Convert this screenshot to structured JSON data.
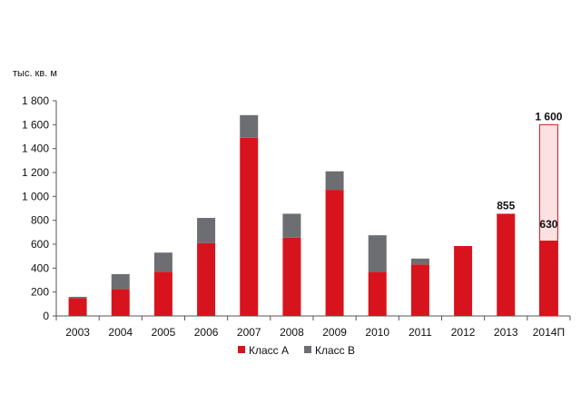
{
  "chart_data": {
    "type": "bar",
    "stacked": true,
    "unit_label": "тыс. кв. м",
    "categories": [
      "2003",
      "2004",
      "2005",
      "2006",
      "2007",
      "2008",
      "2009",
      "2010",
      "2011",
      "2012",
      "2013",
      "2014П"
    ],
    "series": [
      {
        "name": "Класс А",
        "color": "#d7141d",
        "values": [
          150,
          225,
          370,
          610,
          1490,
          655,
          1055,
          370,
          430,
          585,
          855,
          630
        ]
      },
      {
        "name": "Класс В",
        "color": "#6d6e71",
        "values": [
          10,
          125,
          160,
          210,
          190,
          200,
          155,
          305,
          50,
          0,
          0,
          0
        ]
      }
    ],
    "forecast": {
      "category": "2014П",
      "total": 1600,
      "color": "#fbe1e1",
      "border_color": "#d7141d"
    },
    "data_labels": [
      {
        "category": "2013",
        "text": "855"
      },
      {
        "category": "2014П",
        "text": "1 600"
      },
      {
        "category": "2014П",
        "text": "630"
      }
    ],
    "y_ticks": [
      "0",
      "200",
      "400",
      "600",
      "800",
      "1 000",
      "1 200",
      "1 400",
      "1 600",
      "1 800"
    ],
    "ylim": [
      0,
      1800
    ],
    "grid": false,
    "legend_position": "bottom"
  }
}
